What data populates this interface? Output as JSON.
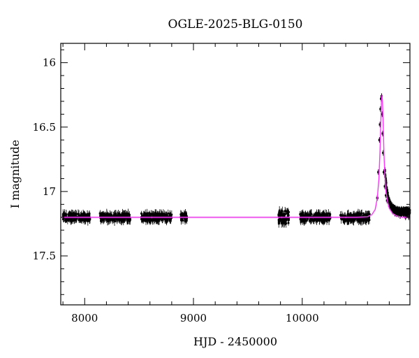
{
  "chart_data": {
    "type": "scatter",
    "title": "OGLE-2025-BLG-0150",
    "xlabel": "HJD - 2450000",
    "ylabel": "I magnitude",
    "xlim": [
      7780,
      10990
    ],
    "ylim": [
      17.88,
      15.85
    ],
    "y_inverted": true,
    "x_ticks": [
      8000,
      9000,
      10000
    ],
    "y_ticks": [
      16,
      16.5,
      17,
      17.5
    ],
    "grid": false,
    "colors": {
      "data": "#000000",
      "model": "#ff33ff"
    },
    "baseline": 17.2,
    "peak": {
      "t0": 10730,
      "mag": 16.25
    },
    "seasons": [
      [
        7800,
        8050
      ],
      [
        8140,
        8420
      ],
      [
        8520,
        8800
      ],
      [
        8880,
        8940
      ],
      [
        9780,
        9880
      ],
      [
        9980,
        10260
      ],
      [
        10350,
        10620
      ]
    ],
    "series": [
      {
        "kind": "points",
        "x": [
          7805,
          7835,
          7865,
          7895,
          7925,
          7955,
          7985,
          8015,
          8045,
          8150,
          8180,
          8210,
          8240,
          8270,
          8300,
          8330,
          8360,
          8390,
          8415,
          8525,
          8560,
          8595,
          8630,
          8665,
          8700,
          8735,
          8770,
          8795,
          8885,
          8910,
          8935,
          9785,
          9800,
          9815,
          9830,
          9845,
          9860,
          9875,
          9990,
          10020,
          10050,
          10080,
          10110,
          10140,
          10170,
          10200,
          10230,
          10255,
          10360,
          10395,
          10430,
          10465,
          10500,
          10535,
          10570,
          10610,
          10690,
          10700,
          10710,
          10715,
          10720,
          10725,
          10730,
          10735,
          10740,
          10745,
          10750,
          10760,
          10770,
          10780,
          10800,
          10830,
          10860,
          10900,
          10950,
          10980
        ],
        "y": [
          17.2,
          17.21,
          17.19,
          17.2,
          17.21,
          17.2,
          17.19,
          17.2,
          17.21,
          17.2,
          17.19,
          17.21,
          17.2,
          17.2,
          17.19,
          17.21,
          17.2,
          17.2,
          17.21,
          17.2,
          17.19,
          17.2,
          17.21,
          17.2,
          17.19,
          17.2,
          17.21,
          17.2,
          17.2,
          17.19,
          17.21,
          17.22,
          17.19,
          17.23,
          17.2,
          17.24,
          17.21,
          17.22,
          17.21,
          17.19,
          17.21,
          17.2,
          17.2,
          17.19,
          17.21,
          17.2,
          17.2,
          17.21,
          17.2,
          17.19,
          17.21,
          17.2,
          17.19,
          17.21,
          17.2,
          17.2,
          17.05,
          16.85,
          16.6,
          16.48,
          16.36,
          16.28,
          16.26,
          16.4,
          16.55,
          16.7,
          16.85,
          16.96,
          17.03,
          17.07,
          17.11,
          17.15,
          17.17,
          17.19,
          17.2,
          17.2
        ]
      },
      {
        "kind": "model",
        "x": [
          7780,
          10500,
          10600,
          10640,
          10670,
          10690,
          10705,
          10715,
          10722,
          10728,
          10733,
          10738,
          10745,
          10752,
          10760,
          10770,
          10785,
          10800,
          10830,
          10870,
          10920,
          10990
        ],
        "y": [
          17.2,
          17.2,
          17.195,
          17.18,
          17.14,
          17.05,
          16.9,
          16.68,
          16.47,
          16.3,
          16.25,
          16.3,
          16.5,
          16.72,
          16.88,
          17.0,
          17.08,
          17.13,
          17.17,
          17.19,
          17.2,
          17.2
        ]
      }
    ]
  }
}
